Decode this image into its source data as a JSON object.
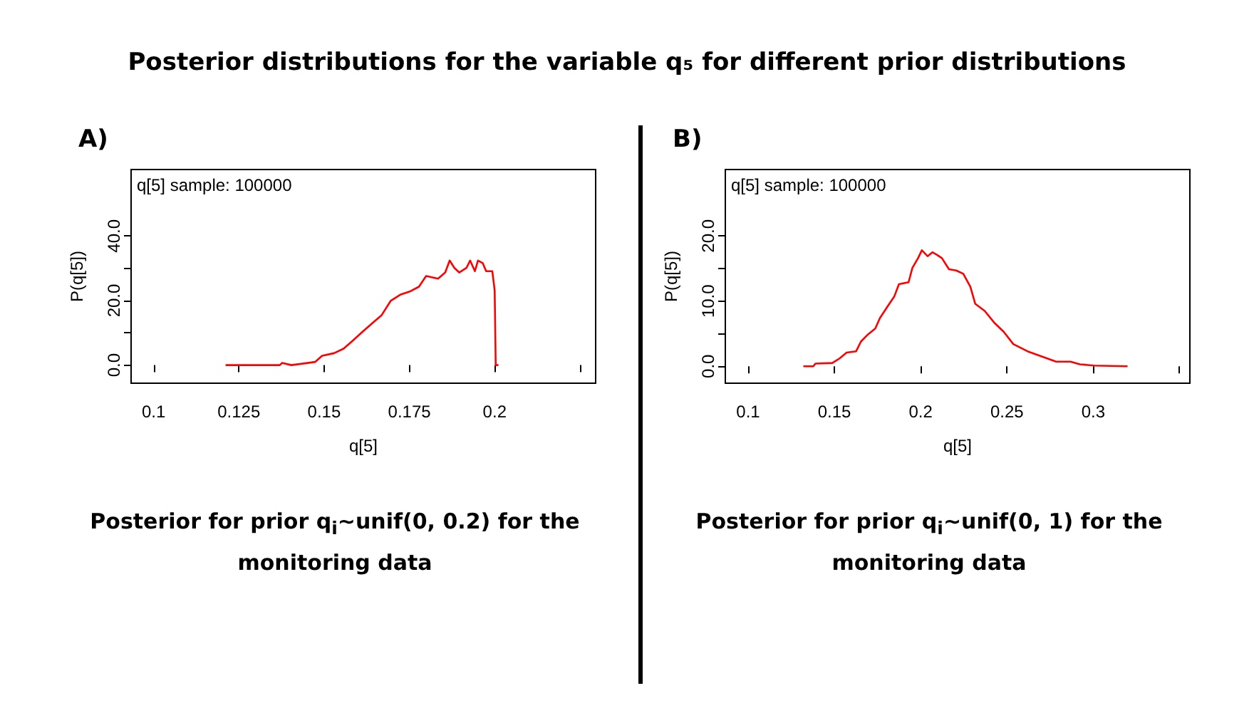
{
  "chart_data": [
    {
      "type": "line",
      "title": "Posterior distributions for the variable q₅ for different prior distributions",
      "xlabel": "q[5]",
      "ylabel": "P(q[5])",
      "annotations": [
        "A)",
        "q[5] sample: 100000",
        "Posterior for prior q$_{i}$~unif(0, 0.2) for the monitoring data"
      ],
      "x": [
        0.1211,
        0.137,
        0.1377,
        0.1404,
        0.1474,
        0.1494,
        0.1529,
        0.1557,
        0.1584,
        0.1612,
        0.164,
        0.1668,
        0.1695,
        0.1723,
        0.1751,
        0.1778,
        0.1799,
        0.1834,
        0.1855,
        0.1868,
        0.1882,
        0.1896,
        0.1917,
        0.1928,
        0.1942,
        0.1951,
        0.1965,
        0.1975,
        0.1993,
        0.2,
        0.2003,
        0.2011
      ],
      "series": [
        {
          "color": "#ff0000",
          "values": [
            0,
            0,
            0.7,
            0,
            1,
            2.9,
            3.7,
            5.1,
            7.6,
            10.3,
            12.9,
            15.4,
            19.9,
            21.8,
            22.8,
            24.3,
            27.6,
            26.8,
            28.7,
            32.4,
            30.1,
            28.7,
            30.1,
            32.4,
            29.1,
            32.4,
            31.6,
            29.1,
            29.1,
            23.1,
            0,
            0
          ]
        }
      ],
      "xlim": [
        0.0934,
        0.2296
      ],
      "ylim": [
        -5.6,
        60.6
      ],
      "xticks": [
        0.1,
        0.125,
        0.15,
        0.175,
        0.2,
        {
          "value": 0.225,
          "label": null
        }
      ],
      "yticks": [
        {
          "value": 0,
          "label": "0.0"
        },
        {
          "value": 10,
          "label": null
        },
        {
          "value": 20,
          "label": "20.0"
        },
        {
          "value": 30,
          "label": null
        },
        {
          "value": 40,
          "label": "40.0"
        }
      ],
      "marker": "none",
      "line_style": "solid"
    },
    {
      "type": "line",
      "xlabel": "q[5]",
      "ylabel": "P(q[5])",
      "annotations": [
        "B)",
        "q[5] sample: 100000",
        "Posterior for prior q$_{i}$~unif(0, 1) for the monitoring data"
      ],
      "x": [
        0.132,
        0.1378,
        0.139,
        0.1488,
        0.153,
        0.1571,
        0.1626,
        0.1654,
        0.1695,
        0.1737,
        0.1764,
        0.1806,
        0.1847,
        0.1874,
        0.193,
        0.1952,
        0.1985,
        0.2007,
        0.204,
        0.2068,
        0.2095,
        0.2123,
        0.2164,
        0.2206,
        0.2247,
        0.2288,
        0.2316,
        0.2371,
        0.2426,
        0.2481,
        0.2537,
        0.2619,
        0.2702,
        0.2785,
        0.2868,
        0.2923,
        0.3006,
        0.3199
      ],
      "series": [
        {
          "color": "#ff0000",
          "values": [
            0,
            0,
            0.4,
            0.5,
            1.2,
            2.1,
            2.3,
            3.8,
            4.9,
            5.8,
            7.4,
            9.1,
            10.7,
            12.6,
            12.9,
            15.1,
            16.6,
            17.8,
            16.9,
            17.5,
            17.1,
            16.6,
            14.9,
            14.7,
            14.2,
            12.2,
            9.6,
            8.5,
            6.7,
            5.3,
            3.4,
            2.3,
            1.5,
            0.7,
            0.7,
            0.3,
            0.1,
            0
          ]
        }
      ],
      "xlim": [
        0.0868,
        0.356
      ],
      "ylim": [
        -2.6,
        30.2
      ],
      "xticks": [
        0.1,
        0.15,
        0.2,
        0.25,
        0.3,
        {
          "value": 0.35,
          "label": null
        }
      ],
      "yticks": [
        {
          "value": 0,
          "label": "0.0"
        },
        {
          "value": 5,
          "label": null
        },
        {
          "value": 10,
          "label": "10.0"
        },
        {
          "value": 15,
          "label": null
        },
        {
          "value": 20,
          "label": "20.0"
        }
      ],
      "marker": "none",
      "line_style": "solid"
    }
  ]
}
